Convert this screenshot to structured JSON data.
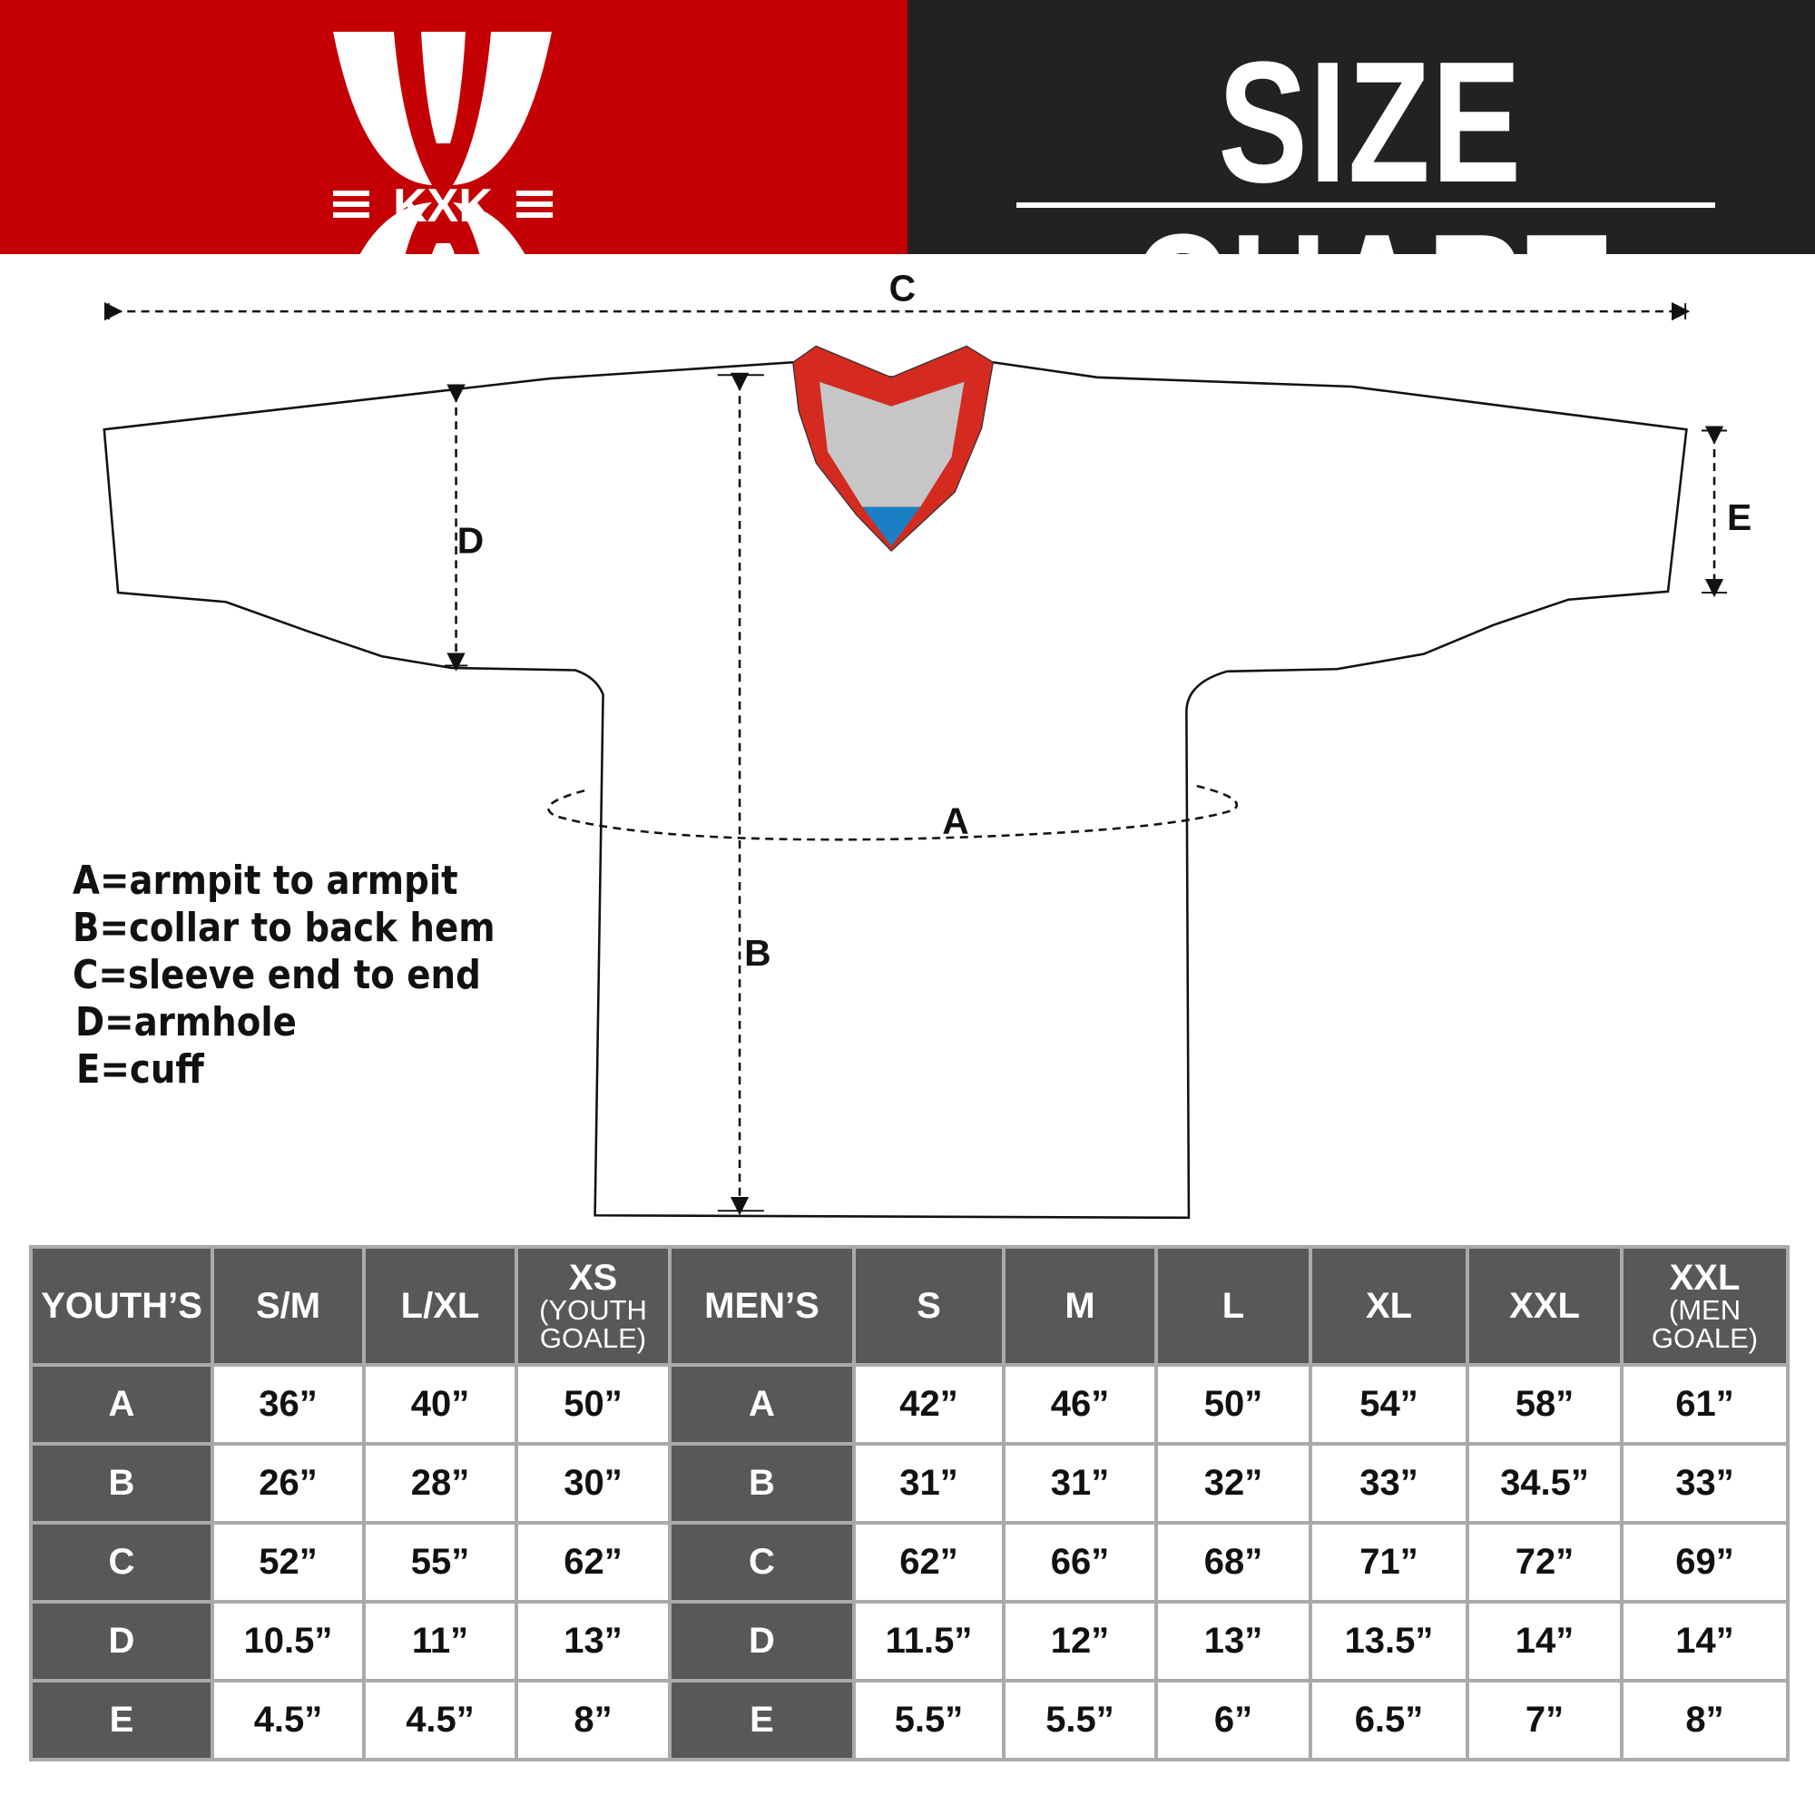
{
  "brand": {
    "logo_text": "KXK",
    "colors": {
      "red": "#c40004",
      "dark": "#222222",
      "table_header": "#58585a"
    }
  },
  "title": "SIZE CHART",
  "diagram": {
    "labels": {
      "a": "A",
      "b": "B",
      "c": "C",
      "d": "D",
      "e": "E"
    },
    "collar_colors": {
      "trim": "#d42a20",
      "inner": "#c6c6c6",
      "tag": "#1a7fc4"
    }
  },
  "legend": [
    "A=armpit to armpit",
    "B=collar to back hem",
    "C=sleeve end to end",
    "D=armhole",
    "E=cuff"
  ],
  "table": {
    "headers": [
      {
        "main": "YOUTH’S"
      },
      {
        "main": "S/M"
      },
      {
        "main": "L/XL"
      },
      {
        "main": "XS",
        "sub": "(YOUTH GOALE)"
      },
      {
        "main": "MEN’S"
      },
      {
        "main": "S"
      },
      {
        "main": "M"
      },
      {
        "main": "L"
      },
      {
        "main": "XL"
      },
      {
        "main": "XXL"
      },
      {
        "main": "XXL",
        "sub": "(MEN GOALE)"
      }
    ],
    "rows": [
      [
        "A",
        "36”",
        "40”",
        "50”",
        "A",
        "42”",
        "46”",
        "50”",
        "54”",
        "58”",
        "61”"
      ],
      [
        "B",
        "26”",
        "28”",
        "30”",
        "B",
        "31”",
        "31”",
        "32”",
        "33”",
        "34.5”",
        "33”"
      ],
      [
        "C",
        "52”",
        "55”",
        "62”",
        "C",
        "62”",
        "66”",
        "68”",
        "71”",
        "72”",
        "69”"
      ],
      [
        "D",
        "10.5”",
        "11”",
        "13”",
        "D",
        "11.5”",
        "12”",
        "13”",
        "13.5”",
        "14”",
        "14”"
      ],
      [
        "E",
        "4.5”",
        "4.5”",
        "8”",
        "E",
        "5.5”",
        "5.5”",
        "6”",
        "6.5”",
        "7”",
        "8”"
      ]
    ]
  }
}
